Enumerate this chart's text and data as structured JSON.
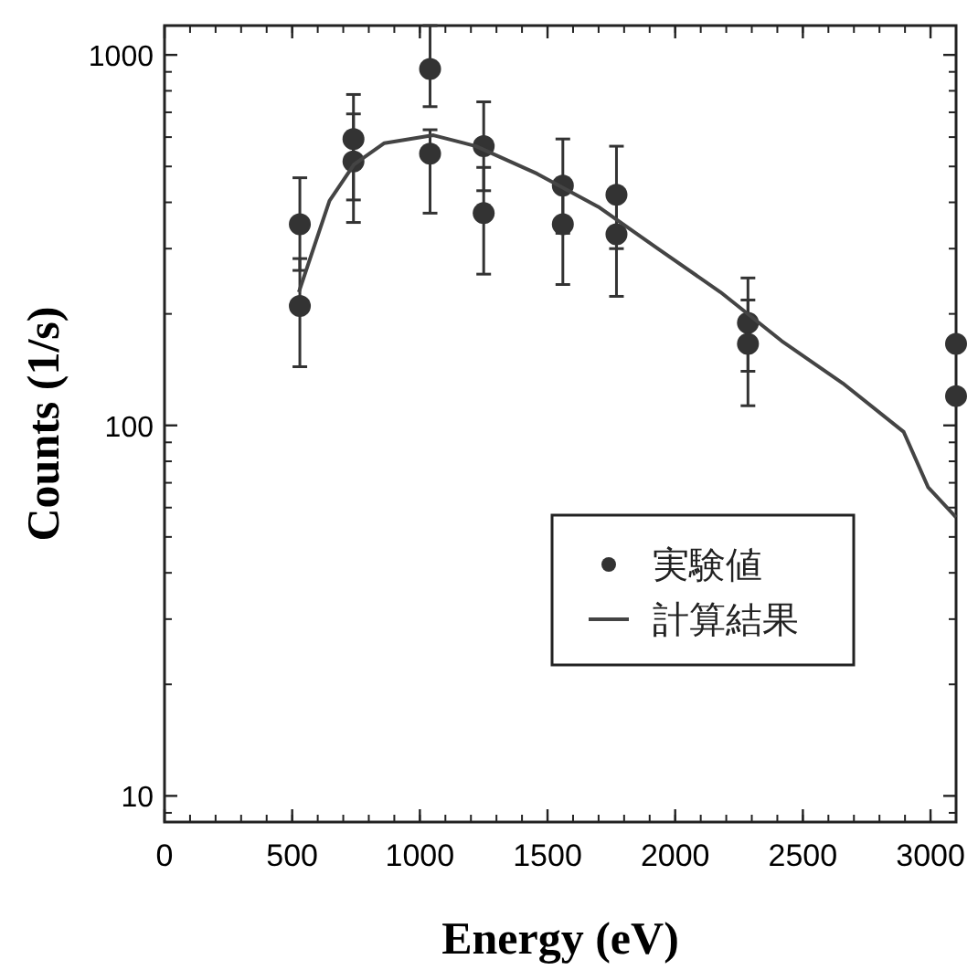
{
  "chart_data": {
    "type": "scatter",
    "xlabel": "Energy (eV)",
    "ylabel": "Counts (1/s)",
    "log": "y",
    "xlim": [
      0,
      3100
    ],
    "ylim": [
      8.5,
      1200
    ],
    "xticks": [
      0,
      500,
      1000,
      1500,
      2000,
      2500,
      3000
    ],
    "yticks": [
      10,
      100,
      1000
    ],
    "grid": false,
    "legend": "right",
    "series": [
      {
        "name": "実験値",
        "marker": "circle",
        "color": "#333333",
        "x": [
          530,
          530,
          740,
          740,
          1040,
          1040,
          1250,
          1250,
          1560,
          1560,
          1770,
          1770,
          2285,
          2285,
          3100,
          3100
        ],
        "values": [
          349,
          210,
          593,
          516,
          916,
          541,
          567,
          374,
          444,
          349,
          419,
          328,
          189,
          166,
          166,
          120
        ],
        "errors": [
          [
            262,
            466
          ],
          [
            144,
            282
          ],
          [
            406,
            782
          ],
          [
            353,
            693
          ],
          [
            725,
            1200
          ],
          [
            374,
            628
          ],
          [
            430,
            747
          ],
          [
            256,
            497
          ],
          [
            330,
            593
          ],
          [
            240,
            460
          ],
          [
            300,
            567
          ],
          [
            223,
            430
          ],
          [
            140,
            250
          ],
          [
            113,
            218
          ],
          null,
          null
        ]
      },
      {
        "name": "計算結果",
        "type": "line",
        "marker": "none",
        "color": "#444444",
        "x": [
          526,
          646,
          742,
          861,
          1053,
          1220,
          1459,
          1699,
          1938,
          2177,
          2417,
          2656,
          2895,
          2991,
          3100
        ],
        "values": [
          229,
          404,
          506,
          578,
          607,
          567,
          478,
          389,
          298,
          229,
          169,
          130,
          96,
          68,
          56.5
        ]
      }
    ]
  }
}
